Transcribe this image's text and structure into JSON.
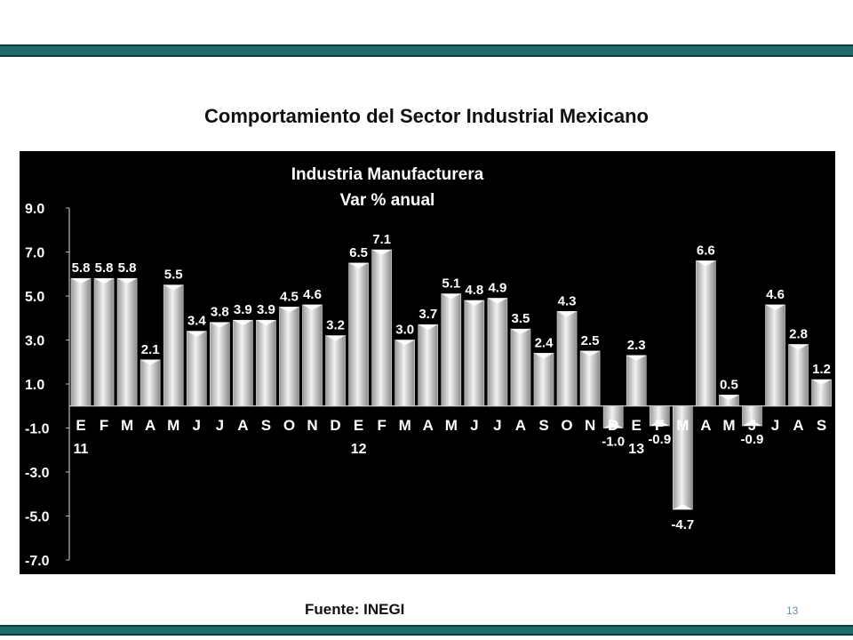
{
  "slide": {
    "title": "Comportamiento del Sector Industrial Mexicano",
    "source": "Fuente: INEGI",
    "page_number": "13"
  },
  "colors": {
    "bar_light": "#ededed",
    "bar_dark": "#8a8a8a",
    "background": "#000000",
    "text": "#ffffff",
    "accent_bar": "#1f6b6b"
  },
  "chart_data": {
    "type": "bar",
    "title": "Industria Manufacturera",
    "subtitle": "Var % anual",
    "categories": [
      "E",
      "F",
      "M",
      "A",
      "M",
      "J",
      "J",
      "A",
      "S",
      "O",
      "N",
      "D",
      "E",
      "F",
      "M",
      "A",
      "M",
      "J",
      "J",
      "A",
      "S",
      "O",
      "N",
      "D",
      "E",
      "F",
      "M",
      "A",
      "M",
      "J",
      "J",
      "A",
      "S"
    ],
    "year_labels": [
      {
        "index": 0,
        "label": "11"
      },
      {
        "index": 12,
        "label": "12"
      },
      {
        "index": 24,
        "label": "13"
      }
    ],
    "values": [
      5.8,
      5.8,
      5.8,
      2.1,
      5.5,
      3.4,
      3.8,
      3.9,
      3.9,
      4.5,
      4.6,
      3.2,
      6.5,
      7.1,
      3.0,
      3.7,
      5.1,
      4.8,
      4.9,
      3.5,
      2.4,
      4.3,
      2.5,
      -1.0,
      2.3,
      -0.9,
      -4.7,
      6.6,
      0.5,
      -0.9,
      4.6,
      2.8,
      1.2
    ],
    "data_labels": [
      "5.8",
      "5.8",
      "5.8",
      "2.1",
      "5.5",
      "3.4",
      "3.8",
      "3.9",
      "3.9",
      "4.5",
      "4.6",
      "3.2",
      "6.5",
      "7.1",
      "3.0",
      "3.7",
      "5.1",
      "4.8",
      "4.9",
      "3.5",
      "2.4",
      "4.3",
      "2.5",
      "-1.0",
      "2.3",
      "-0.9",
      "-4.7",
      "6.6",
      "0.5",
      "-0.9",
      "4.6",
      "2.8",
      "1.2"
    ],
    "yticks": [
      "9.0",
      "7.0",
      "5.0",
      "3.0",
      "1.0",
      "-1.0",
      "-3.0",
      "-5.0",
      "-7.0"
    ],
    "ylim": [
      -7,
      9
    ],
    "grid": false,
    "legend": false
  }
}
